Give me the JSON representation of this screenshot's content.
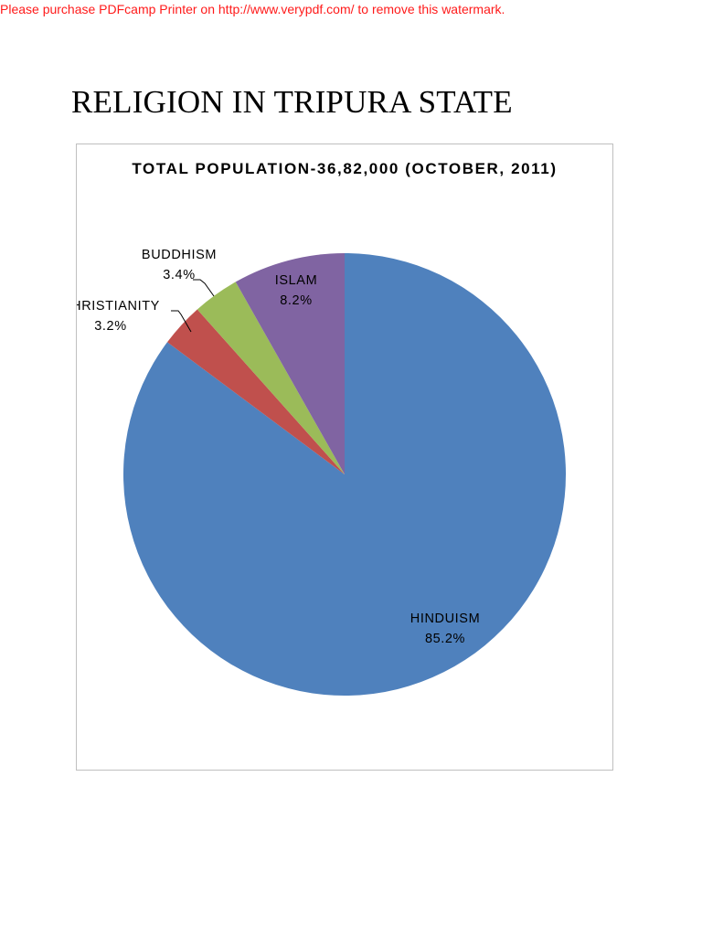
{
  "watermark": "Please purchase PDFcamp Printer on http://www.verypdf.com/ to remove this watermark.",
  "document": {
    "title": "RELIGION IN TRIPURA STATE"
  },
  "chart_data": {
    "type": "pie",
    "title": "TOTAL POPULATION-36,82,000 (OCTOBER, 2011)",
    "start": "12 o'clock",
    "direction": "clockwise",
    "slices": [
      {
        "label": "HINDUISM",
        "value": 85.2,
        "value_label": "85.2%",
        "color": "#4f81bd"
      },
      {
        "label": "CHRISTIANITY",
        "value": 3.2,
        "value_label": "3.2%",
        "color": "#c0504d"
      },
      {
        "label": "BUDDHISM",
        "value": 3.4,
        "value_label": "3.4%",
        "color": "#9bbb59"
      },
      {
        "label": "ISLAM",
        "value": 8.2,
        "value_label": "8.2%",
        "color": "#8064a2"
      }
    ]
  }
}
